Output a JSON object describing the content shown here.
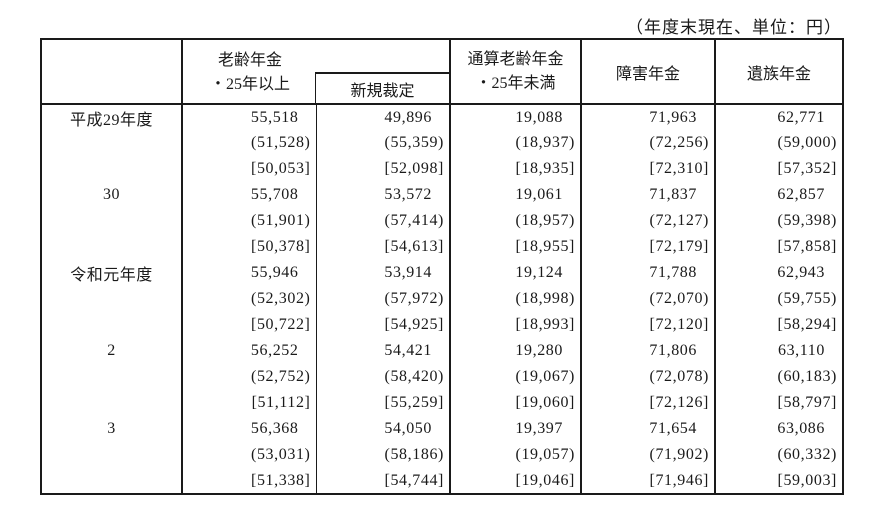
{
  "note": "（年度末現在、単位：円）",
  "table": {
    "header": {
      "old_age_line1": "老齢年金",
      "old_age_line2": "・25年以上",
      "new_award": "新規裁定",
      "total_old_age_line1": "通算老齢年金",
      "total_old_age_line2": "・25年未満",
      "disability": "障害年金",
      "survivor": "遺族年金"
    },
    "groups": [
      {
        "year": "平成29年度",
        "rows": [
          [
            "55,518",
            "49,896",
            "19,088",
            "71,963",
            "62,771"
          ],
          [
            "(51,528)",
            "(55,359)",
            "(18,937)",
            "(72,256)",
            "(59,000)"
          ],
          [
            "[50,053]",
            "[52,098]",
            "[18,935]",
            "[72,310]",
            "[57,352]"
          ]
        ]
      },
      {
        "year": "30",
        "rows": [
          [
            "55,708",
            "53,572",
            "19,061",
            "71,837",
            "62,857"
          ],
          [
            "(51,901)",
            "(57,414)",
            "(18,957)",
            "(72,127)",
            "(59,398)"
          ],
          [
            "[50,378]",
            "[54,613]",
            "[18,955]",
            "[72,179]",
            "[57,858]"
          ]
        ]
      },
      {
        "year": "令和元年度",
        "rows": [
          [
            "55,946",
            "53,914",
            "19,124",
            "71,788",
            "62,943"
          ],
          [
            "(52,302)",
            "(57,972)",
            "(18,998)",
            "(72,070)",
            "(59,755)"
          ],
          [
            "[50,722]",
            "[54,925]",
            "[18,993]",
            "[72,120]",
            "[58,294]"
          ]
        ]
      },
      {
        "year": "2",
        "rows": [
          [
            "56,252",
            "54,421",
            "19,280",
            "71,806",
            "63,110"
          ],
          [
            "(52,752)",
            "(58,420)",
            "(19,067)",
            "(72,078)",
            "(60,183)"
          ],
          [
            "[51,112]",
            "[55,259]",
            "[19,060]",
            "[72,126]",
            "[58,797]"
          ]
        ]
      },
      {
        "year": "3",
        "rows": [
          [
            "56,368",
            "54,050",
            "19,397",
            "71,654",
            "63,086"
          ],
          [
            "(53,031)",
            "(58,186)",
            "(19,057)",
            "(71,902)",
            "(60,332)"
          ],
          [
            "[51,338]",
            "[54,744]",
            "[19,046]",
            "[71,946]",
            "[59,003]"
          ]
        ]
      }
    ]
  }
}
